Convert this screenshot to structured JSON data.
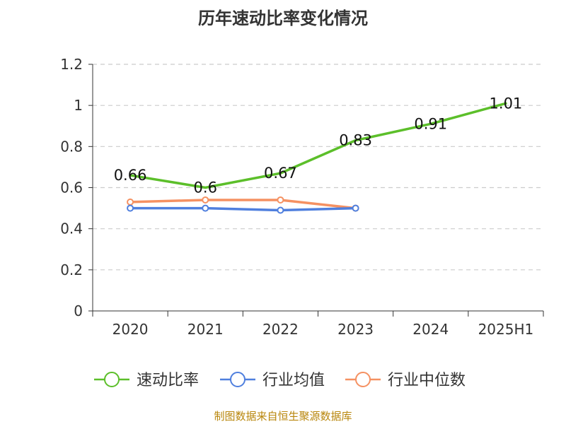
{
  "chart_data": {
    "type": "line",
    "title": "历年速动比率变化情况",
    "categories": [
      "2020",
      "2021",
      "2022",
      "2023",
      "2024",
      "2025H1"
    ],
    "ylim": [
      0,
      1.2
    ],
    "yticks": [
      "0",
      "0.2",
      "0.4",
      "0.6",
      "0.8",
      "1",
      "1.2"
    ],
    "grid": true,
    "legend_position": "bottom",
    "series": [
      {
        "name": "速动比率",
        "color": "#5cbf2a",
        "values": [
          0.66,
          0.6,
          0.67,
          0.83,
          0.91,
          1.01
        ],
        "data_labels": [
          "0.66",
          "0.6",
          "0.67",
          "0.83",
          "0.91",
          "1.01"
        ],
        "show_markers": false
      },
      {
        "name": "行业均值",
        "color": "#4f7fde",
        "values": [
          0.5,
          0.5,
          0.49,
          0.5,
          null,
          null
        ],
        "show_markers": true
      },
      {
        "name": "行业中位数",
        "color": "#f59162",
        "values": [
          0.53,
          0.54,
          0.54,
          0.5,
          null,
          null
        ],
        "show_markers": true
      }
    ]
  },
  "footer": {
    "source": "制图数据来自恒生聚源数据库"
  }
}
